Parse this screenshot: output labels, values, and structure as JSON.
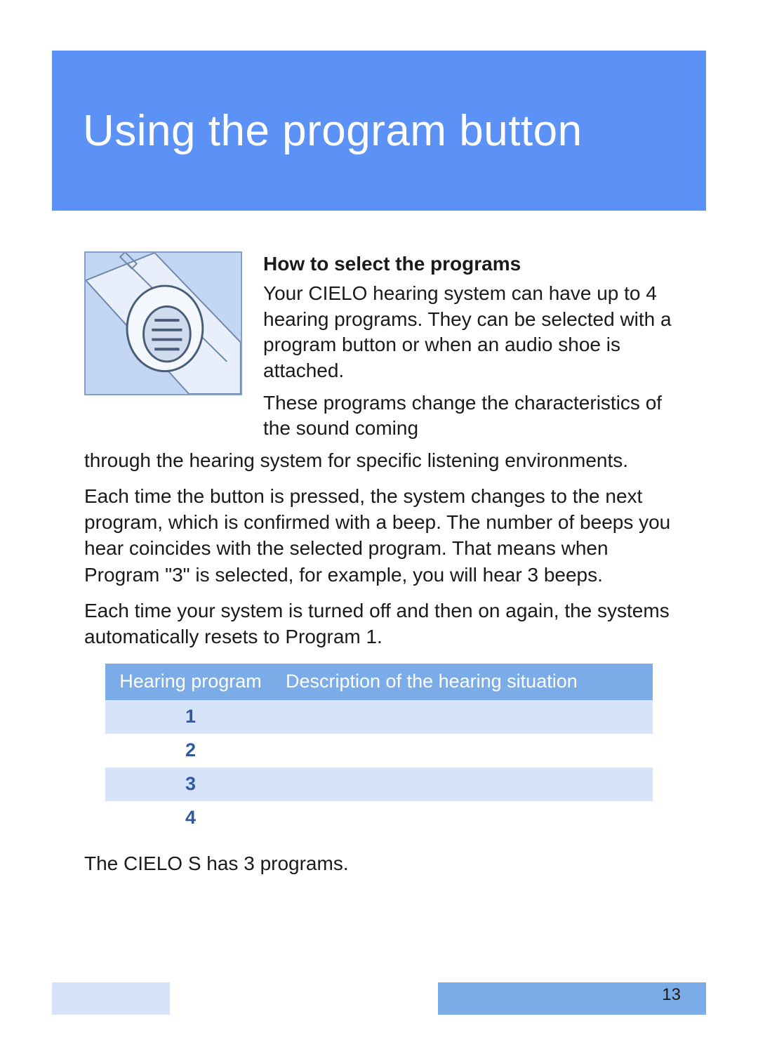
{
  "colors": {
    "header_bg": "#5c92f6",
    "header_text": "#ffffff",
    "illus_bg": "#c3d6f4",
    "illus_border": "#84a0c9",
    "text": "#1a1a1a",
    "table_header_bg": "#7bace8",
    "table_header_text": "#ffffff",
    "row_odd_bg": "#d6e4f9",
    "row_even_bg": "#ffffff",
    "row_odd_text": "#30599e",
    "row_even_text": "#30599e",
    "footer_seg1": "#d6e4f9",
    "footer_seg2": "#ffffff",
    "footer_seg3": "#7bace8"
  },
  "header": {
    "title": "Using the program button"
  },
  "section": {
    "subhead": "How to select the programs",
    "para1": "Your CIELO hearing system can have up to 4 hearing programs. They can be selected with a pro­gram button or when an audio shoe is attached.",
    "para2_lead": "These programs change the cha­racteristics of the sound coming",
    "para2_tail": "through the hearing system for specific listening environments.",
    "para3": "Each time the button is pressed, the system changes to the next program, which is confirmed with a beep. The number of beeps you hear coincides with the selected program. That means when Program \"3\" is selected, for example, you will hear 3 beeps.",
    "para4": "Each time your system is turned off and then on again, the systems automatically resets to Program 1.",
    "footnote": "The CIELO S has 3 programs."
  },
  "table": {
    "headers": {
      "col1": "Hearing program",
      "col2": "Description of the hearing situation"
    },
    "rows": [
      {
        "program": "1",
        "description": ""
      },
      {
        "program": "2",
        "description": ""
      },
      {
        "program": "3",
        "description": ""
      },
      {
        "program": "4",
        "description": ""
      }
    ]
  },
  "footer": {
    "seg_widths_pct": [
      18,
      41,
      41
    ],
    "page_number": "13"
  }
}
